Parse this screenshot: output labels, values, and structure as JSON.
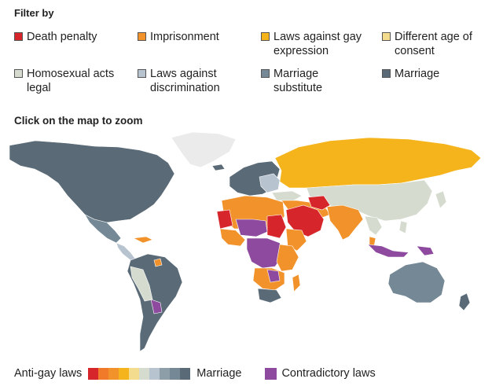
{
  "filter": {
    "title": "Filter by",
    "items": [
      {
        "label": "Death penalty",
        "color": "#d7262b"
      },
      {
        "label": "Imprisonment",
        "color": "#f2922b"
      },
      {
        "label": "Laws against gay expression",
        "color": "#f5b41c"
      },
      {
        "label": "Different age of consent",
        "color": "#f4dc8e"
      },
      {
        "label": "Homosexual acts legal",
        "color": "#d5dccf"
      },
      {
        "label": "Laws against discrimination",
        "color": "#b7c3cf"
      },
      {
        "label": "Marriage substitute",
        "color": "#758896"
      },
      {
        "label": "Marriage",
        "color": "#5a6b77"
      }
    ]
  },
  "map": {
    "title": "Click on the map to zoom",
    "no_data_color": "#ebebeb"
  },
  "legend": {
    "left_label": "Anti-gay laws",
    "right_label": "Marriage",
    "scale_colors": [
      "#d7262b",
      "#f07a2a",
      "#f2922b",
      "#f5b41c",
      "#f4dc8e",
      "#d5dccf",
      "#b7c3cf",
      "#8e9ea9",
      "#758896",
      "#5a6b77"
    ],
    "contradictory_label": "Contradictory laws",
    "contradictory_color": "#8e4a9e"
  }
}
